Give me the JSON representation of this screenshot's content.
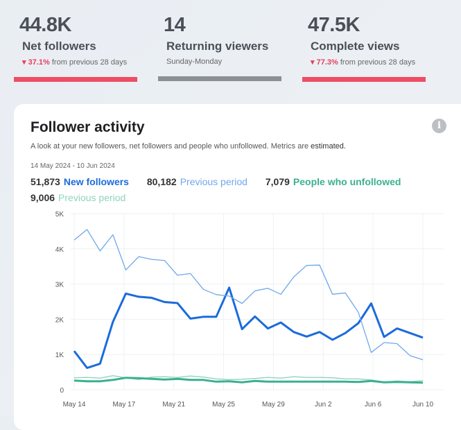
{
  "stats": [
    {
      "value": "44.8K",
      "label": "Net followers",
      "change": "37.1%",
      "change_text": "from previous 28 days",
      "direction": "down",
      "bar_color": "#ef4d63"
    },
    {
      "value": "14",
      "label": "Returning viewers",
      "sub": "Sunday-Monday",
      "bar_color": "#8a9096"
    },
    {
      "value": "47.5K",
      "label": "Complete views",
      "change": "77.3%",
      "change_text": "from previous 28 days",
      "direction": "down",
      "bar_color": "#ef4d63"
    }
  ],
  "card": {
    "title": "Follower activity",
    "info_icon": "i",
    "description": "A look at your new followers, net followers and people who unfollowed. Metrics are ",
    "description_em": "estimated.",
    "date_range": "14 May 2024 - 10 Jun 2024",
    "legend": [
      {
        "count": "51,873",
        "label": "New followers",
        "color": "#1a6bdc"
      },
      {
        "count": "80,182",
        "label": "Previous period",
        "color": "#6fa8e8"
      },
      {
        "count": "7,079",
        "label": "People who unfollowed",
        "color": "#3bb08f"
      },
      {
        "count": "9,006",
        "label": "Previous period",
        "color": "#8fd3bf"
      }
    ]
  },
  "chart_data": {
    "type": "line",
    "x_start": "May 14",
    "x_end": "Jun 10",
    "x_tick_labels": [
      "May 14",
      "May 17",
      "May 21",
      "May 25",
      "May 29",
      "Jun 2",
      "Jun 6",
      "Jun 10"
    ],
    "y_tick_labels": [
      "0",
      "1K",
      "2K",
      "3K",
      "4K",
      "5K"
    ],
    "ylim": [
      0,
      5000
    ],
    "grid": true,
    "series": [
      {
        "name": "New followers",
        "color": "#1a6bdc",
        "width": 3,
        "values": [
          1100,
          620,
          740,
          1930,
          2730,
          2640,
          2610,
          2490,
          2460,
          2020,
          2070,
          2070,
          2900,
          1720,
          2080,
          1740,
          1910,
          1640,
          1510,
          1640,
          1420,
          1610,
          1890,
          2450,
          1500,
          1740,
          1610,
          1480
        ]
      },
      {
        "name": "Previous period",
        "color": "#6fa8e8",
        "width": 1.3,
        "values": [
          4250,
          4550,
          3940,
          4400,
          3400,
          3780,
          3700,
          3670,
          3250,
          3300,
          2850,
          2700,
          2660,
          2450,
          2810,
          2880,
          2710,
          3200,
          3530,
          3540,
          2710,
          2750,
          2200,
          1060,
          1340,
          1310,
          970,
          850
        ]
      },
      {
        "name": "Previous period",
        "color": "#8fd3bf",
        "width": 1.3,
        "values": [
          340,
          350,
          330,
          400,
          340,
          290,
          360,
          370,
          350,
          390,
          360,
          310,
          290,
          300,
          320,
          350,
          330,
          370,
          350,
          350,
          340,
          310,
          310,
          280,
          220,
          250,
          230,
          260
        ]
      },
      {
        "name": "People who unfollowed",
        "color": "#3bb08f",
        "width": 3,
        "values": [
          260,
          240,
          240,
          280,
          340,
          330,
          310,
          290,
          310,
          280,
          280,
          230,
          240,
          210,
          250,
          230,
          230,
          230,
          230,
          230,
          230,
          230,
          220,
          250,
          210,
          220,
          210,
          200
        ]
      }
    ]
  }
}
